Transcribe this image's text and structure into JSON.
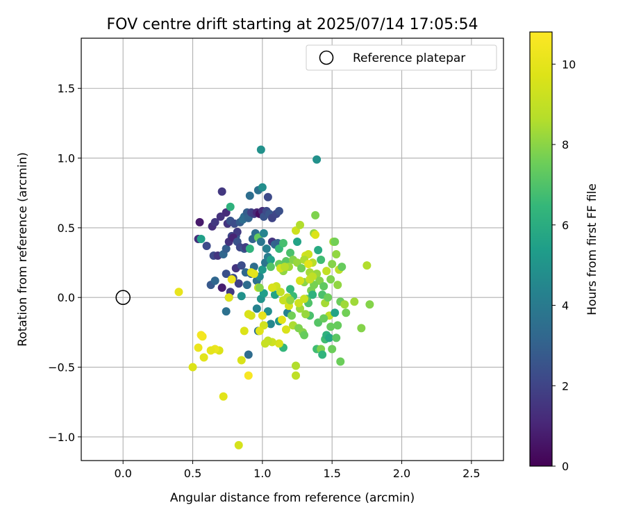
{
  "chart_data": {
    "type": "scatter",
    "title": "FOV centre drift starting at 2025/07/14 17:05:54",
    "xlabel": "Angular distance from reference (arcmin)",
    "ylabel": "Rotation from reference (arcmin)",
    "xlim": [
      -0.3,
      2.73
    ],
    "ylim": [
      -1.17,
      1.86
    ],
    "xticks": [
      0.0,
      0.5,
      1.0,
      1.5,
      2.0,
      2.5
    ],
    "xtick_labels": [
      "0.0",
      "0.5",
      "1.0",
      "1.5",
      "2.0",
      "2.5"
    ],
    "yticks": [
      -1.0,
      -0.5,
      0.0,
      0.5,
      1.0,
      1.5
    ],
    "ytick_labels": [
      "−1.0",
      "−0.5",
      "0.0",
      "0.5",
      "1.0",
      "1.5"
    ],
    "grid": true,
    "legend": {
      "position": "top-right",
      "entries": [
        "Reference platepar"
      ]
    },
    "reference_point": {
      "x": 0.0,
      "y": 0.0,
      "label": "Reference platepar"
    },
    "colorbar": {
      "label": "Hours from first FF file",
      "min": 0,
      "max": 10.8,
      "ticks": [
        0,
        2,
        4,
        6,
        8,
        10
      ],
      "tick_labels": [
        "0",
        "2",
        "4",
        "6",
        "8",
        "10"
      ],
      "colormap": "viridis"
    },
    "points": [
      [
        0.55,
        0.54,
        0.7
      ],
      [
        0.54,
        0.42,
        1.3
      ],
      [
        0.56,
        0.42,
        5.5
      ],
      [
        0.6,
        0.37,
        2.2
      ],
      [
        0.64,
        0.51,
        1.3
      ],
      [
        0.66,
        0.54,
        1.6
      ],
      [
        0.7,
        0.58,
        1.4
      ],
      [
        0.71,
        0.76,
        1.6
      ],
      [
        0.74,
        0.61,
        1.2
      ],
      [
        0.75,
        0.53,
        1.5
      ],
      [
        0.77,
        0.55,
        2.5
      ],
      [
        0.77,
        0.65,
        6.2
      ],
      [
        0.78,
        0.44,
        2.0
      ],
      [
        0.8,
        0.53,
        2.3
      ],
      [
        0.81,
        0.44,
        2.8
      ],
      [
        0.82,
        0.47,
        1.7
      ],
      [
        0.84,
        0.54,
        2.9
      ],
      [
        0.86,
        0.56,
        3.5
      ],
      [
        0.87,
        0.58,
        3.4
      ],
      [
        0.89,
        0.61,
        2.9
      ],
      [
        0.9,
        0.57,
        3.1
      ],
      [
        0.92,
        0.61,
        1.9
      ],
      [
        0.94,
        0.6,
        1.8
      ],
      [
        0.96,
        0.61,
        1.1
      ],
      [
        0.98,
        0.6,
        0.4
      ],
      [
        1.0,
        0.62,
        1.3
      ],
      [
        1.01,
        0.58,
        2.5
      ],
      [
        1.03,
        0.62,
        2.2
      ],
      [
        1.05,
        0.6,
        2.6
      ],
      [
        1.07,
        0.57,
        2.0
      ],
      [
        1.1,
        0.6,
        2.1
      ],
      [
        1.12,
        0.62,
        2.4
      ],
      [
        0.91,
        0.73,
        3.5
      ],
      [
        0.97,
        0.77,
        3.6
      ],
      [
        1.0,
        0.79,
        4.8
      ],
      [
        1.04,
        0.72,
        2.2
      ],
      [
        0.99,
        1.06,
        4.9
      ],
      [
        1.39,
        0.99,
        4.9
      ],
      [
        0.65,
        0.3,
        2.2
      ],
      [
        0.68,
        0.3,
        1.5
      ],
      [
        0.72,
        0.31,
        3.2
      ],
      [
        0.74,
        0.35,
        2.9
      ],
      [
        0.76,
        0.4,
        1.4
      ],
      [
        0.79,
        0.43,
        1.0
      ],
      [
        0.82,
        0.4,
        2.5
      ],
      [
        0.84,
        0.36,
        2.1
      ],
      [
        0.87,
        0.35,
        2.6
      ],
      [
        0.88,
        0.36,
        1.8
      ],
      [
        0.91,
        0.35,
        6.3
      ],
      [
        0.93,
        0.42,
        3.1
      ],
      [
        0.95,
        0.46,
        3.5
      ],
      [
        0.97,
        0.43,
        7.4
      ],
      [
        0.99,
        0.4,
        3.8
      ],
      [
        1.01,
        0.46,
        4.4
      ],
      [
        1.03,
        0.35,
        4.2
      ],
      [
        1.07,
        0.4,
        1.5
      ],
      [
        1.09,
        0.38,
        3.2
      ],
      [
        1.11,
        0.39,
        3.0
      ],
      [
        1.12,
        0.35,
        6.5
      ],
      [
        1.15,
        0.39,
        6.8
      ],
      [
        0.63,
        0.09,
        2.7
      ],
      [
        0.66,
        0.12,
        3.2
      ],
      [
        0.71,
        0.07,
        0.8
      ],
      [
        0.74,
        0.17,
        2.4
      ],
      [
        0.76,
        0.0,
        3.2
      ],
      [
        0.77,
        0.04,
        1.7
      ],
      [
        0.79,
        0.14,
        2.2
      ],
      [
        0.81,
        0.21,
        1.5
      ],
      [
        0.83,
        0.1,
        1.9
      ],
      [
        0.85,
        0.23,
        2.3
      ],
      [
        0.88,
        0.18,
        3.3
      ],
      [
        0.89,
        0.09,
        3.4
      ],
      [
        0.92,
        0.17,
        3.0
      ],
      [
        0.94,
        0.22,
        3.5
      ],
      [
        0.96,
        0.12,
        3.6
      ],
      [
        0.98,
        0.15,
        4.5
      ],
      [
        1.0,
        0.2,
        5.2
      ],
      [
        1.02,
        0.25,
        3.8
      ],
      [
        1.04,
        0.29,
        4.1
      ],
      [
        1.06,
        0.27,
        5.5
      ],
      [
        0.74,
        -0.1,
        3.6
      ],
      [
        0.85,
        0.01,
        4.9
      ],
      [
        0.9,
        -0.41,
        3.4
      ],
      [
        0.96,
        -0.08,
        4.3
      ],
      [
        0.97,
        -0.24,
        3.7
      ],
      [
        0.99,
        -0.01,
        5.0
      ],
      [
        1.01,
        0.03,
        5.4
      ],
      [
        1.04,
        -0.1,
        4.8
      ],
      [
        1.06,
        -0.19,
        4.5
      ],
      [
        1.09,
        0.02,
        5.6
      ],
      [
        1.12,
        -0.17,
        5.0
      ],
      [
        1.15,
        -0.36,
        6.4
      ],
      [
        1.18,
        -0.11,
        4.3
      ],
      [
        1.2,
        0.06,
        6.4
      ],
      [
        1.22,
        0.01,
        6.6
      ],
      [
        1.25,
        0.4,
        5.6
      ],
      [
        1.12,
        0.24,
        7.4
      ],
      [
        1.15,
        0.19,
        8.1
      ],
      [
        1.17,
        0.26,
        7.2
      ],
      [
        1.19,
        0.22,
        8.3
      ],
      [
        1.2,
        0.32,
        6.9
      ],
      [
        1.22,
        0.27,
        7.9
      ],
      [
        1.24,
        0.48,
        9.3
      ],
      [
        1.25,
        0.25,
        8.2
      ],
      [
        1.27,
        0.52,
        8.6
      ],
      [
        1.28,
        0.21,
        7.6
      ],
      [
        1.3,
        0.11,
        8.0
      ],
      [
        1.31,
        0.3,
        9.5
      ],
      [
        1.33,
        0.31,
        9.2
      ],
      [
        1.34,
        0.18,
        8.4
      ],
      [
        1.35,
        0.05,
        7.7
      ],
      [
        1.36,
        0.25,
        8.7
      ],
      [
        1.37,
        0.46,
        8.1
      ],
      [
        1.38,
        0.45,
        9.7
      ],
      [
        1.38,
        0.59,
        7.8
      ],
      [
        1.39,
        0.17,
        8.2
      ],
      [
        1.4,
        0.34,
        5.9
      ],
      [
        1.41,
        0.12,
        7.9
      ],
      [
        1.42,
        0.27,
        6.7
      ],
      [
        1.43,
        0.02,
        6.9
      ],
      [
        1.44,
        0.08,
        7.3
      ],
      [
        1.45,
        -0.04,
        8.4
      ],
      [
        1.46,
        0.19,
        9.0
      ],
      [
        1.47,
        0.0,
        7.5
      ],
      [
        1.48,
        -0.13,
        8.8
      ],
      [
        1.49,
        0.13,
        7.8
      ],
      [
        1.5,
        0.24,
        7.9
      ],
      [
        1.51,
        0.4,
        8.3
      ],
      [
        1.52,
        0.4,
        7.6
      ],
      [
        1.53,
        0.31,
        8.1
      ],
      [
        1.54,
        0.09,
        8.1
      ],
      [
        1.55,
        0.2,
        8.8
      ],
      [
        1.56,
        -0.03,
        7.5
      ],
      [
        1.57,
        0.22,
        7.4
      ],
      [
        1.59,
        -0.05,
        8.3
      ],
      [
        1.6,
        -0.11,
        7.6
      ],
      [
        1.66,
        -0.03,
        8.3
      ],
      [
        1.71,
        -0.22,
        7.9
      ],
      [
        1.75,
        0.23,
        8.6
      ],
      [
        1.77,
        -0.05,
        7.9
      ],
      [
        1.18,
        0.0,
        9.0
      ],
      [
        1.19,
        -0.06,
        9.5
      ],
      [
        1.21,
        -0.13,
        7.6
      ],
      [
        1.22,
        -0.2,
        8.5
      ],
      [
        1.24,
        -0.49,
        8.6
      ],
      [
        1.24,
        -0.56,
        8.9
      ],
      [
        1.26,
        -0.22,
        7.8
      ],
      [
        1.27,
        -0.08,
        8.3
      ],
      [
        1.29,
        -0.25,
        7.9
      ],
      [
        1.3,
        -0.27,
        7.4
      ],
      [
        1.32,
        -0.01,
        7.3
      ],
      [
        1.33,
        -0.04,
        7.0
      ],
      [
        1.34,
        -0.13,
        6.9
      ],
      [
        1.36,
        0.02,
        6.2
      ],
      [
        1.37,
        0.09,
        7.7
      ],
      [
        1.39,
        -0.37,
        6.7
      ],
      [
        1.4,
        -0.18,
        7.1
      ],
      [
        1.42,
        -0.37,
        7.8
      ],
      [
        1.43,
        -0.41,
        6.3
      ],
      [
        1.44,
        -0.15,
        7.4
      ],
      [
        1.45,
        -0.3,
        6.7
      ],
      [
        1.46,
        -0.27,
        6.2
      ],
      [
        1.48,
        -0.29,
        5.7
      ],
      [
        1.49,
        -0.21,
        7.4
      ],
      [
        1.5,
        -0.37,
        7.5
      ],
      [
        1.52,
        -0.11,
        5.6
      ],
      [
        1.53,
        -0.29,
        7.2
      ],
      [
        1.54,
        -0.2,
        7.4
      ],
      [
        1.56,
        -0.46,
        7.5
      ],
      [
        1.1,
        0.08,
        9.3
      ],
      [
        1.13,
        0.04,
        9.0
      ],
      [
        1.15,
        -0.02,
        9.1
      ],
      [
        1.17,
        -0.23,
        9.6
      ],
      [
        1.14,
        -0.16,
        9.9
      ],
      [
        1.12,
        -0.33,
        9.6
      ],
      [
        1.07,
        -0.32,
        9.3
      ],
      [
        1.04,
        -0.31,
        9.0
      ],
      [
        1.02,
        -0.33,
        9.1
      ],
      [
        1.01,
        -0.2,
        9.4
      ],
      [
        1.0,
        -0.13,
        10.1
      ],
      [
        0.98,
        -0.24,
        9.8
      ],
      [
        0.92,
        -0.13,
        9.5
      ],
      [
        0.9,
        -0.12,
        9.6
      ],
      [
        0.87,
        -0.24,
        9.7
      ],
      [
        0.85,
        -0.45,
        9.6
      ],
      [
        0.9,
        -0.56,
        10.6
      ],
      [
        0.83,
        -1.06,
        9.5
      ],
      [
        0.72,
        -0.71,
        9.9
      ],
      [
        0.69,
        -0.38,
        9.7
      ],
      [
        0.66,
        -0.37,
        10.2
      ],
      [
        0.63,
        -0.38,
        10.0
      ],
      [
        0.58,
        -0.43,
        9.9
      ],
      [
        0.57,
        -0.28,
        10.4
      ],
      [
        0.56,
        -0.27,
        10.5
      ],
      [
        0.54,
        -0.36,
        10.2
      ],
      [
        0.5,
        -0.5,
        9.7
      ],
      [
        0.4,
        0.04,
        10.1
      ],
      [
        0.78,
        0.13,
        10.3
      ],
      [
        0.92,
        0.18,
        9.8
      ],
      [
        0.94,
        0.17,
        10.0
      ],
      [
        0.97,
        0.07,
        9.2
      ],
      [
        1.07,
        0.07,
        9.6
      ],
      [
        1.13,
        0.21,
        9.4
      ],
      [
        1.16,
        0.22,
        8.7
      ],
      [
        1.27,
        0.12,
        9.5
      ],
      [
        1.3,
        0.27,
        8.5
      ],
      [
        1.33,
        0.24,
        9.9
      ],
      [
        1.34,
        0.13,
        9.1
      ],
      [
        1.36,
        0.15,
        8.9
      ],
      [
        1.3,
        -0.01,
        9.2
      ],
      [
        1.26,
        -0.04,
        9.3
      ],
      [
        1.31,
        -0.12,
        8.2
      ],
      [
        0.76,
        0.0,
        9.8
      ],
      [
        0.98,
        0.07,
        7.9
      ],
      [
        1.06,
        0.22,
        7.1
      ],
      [
        1.2,
        -0.02,
        8.1
      ]
    ]
  }
}
